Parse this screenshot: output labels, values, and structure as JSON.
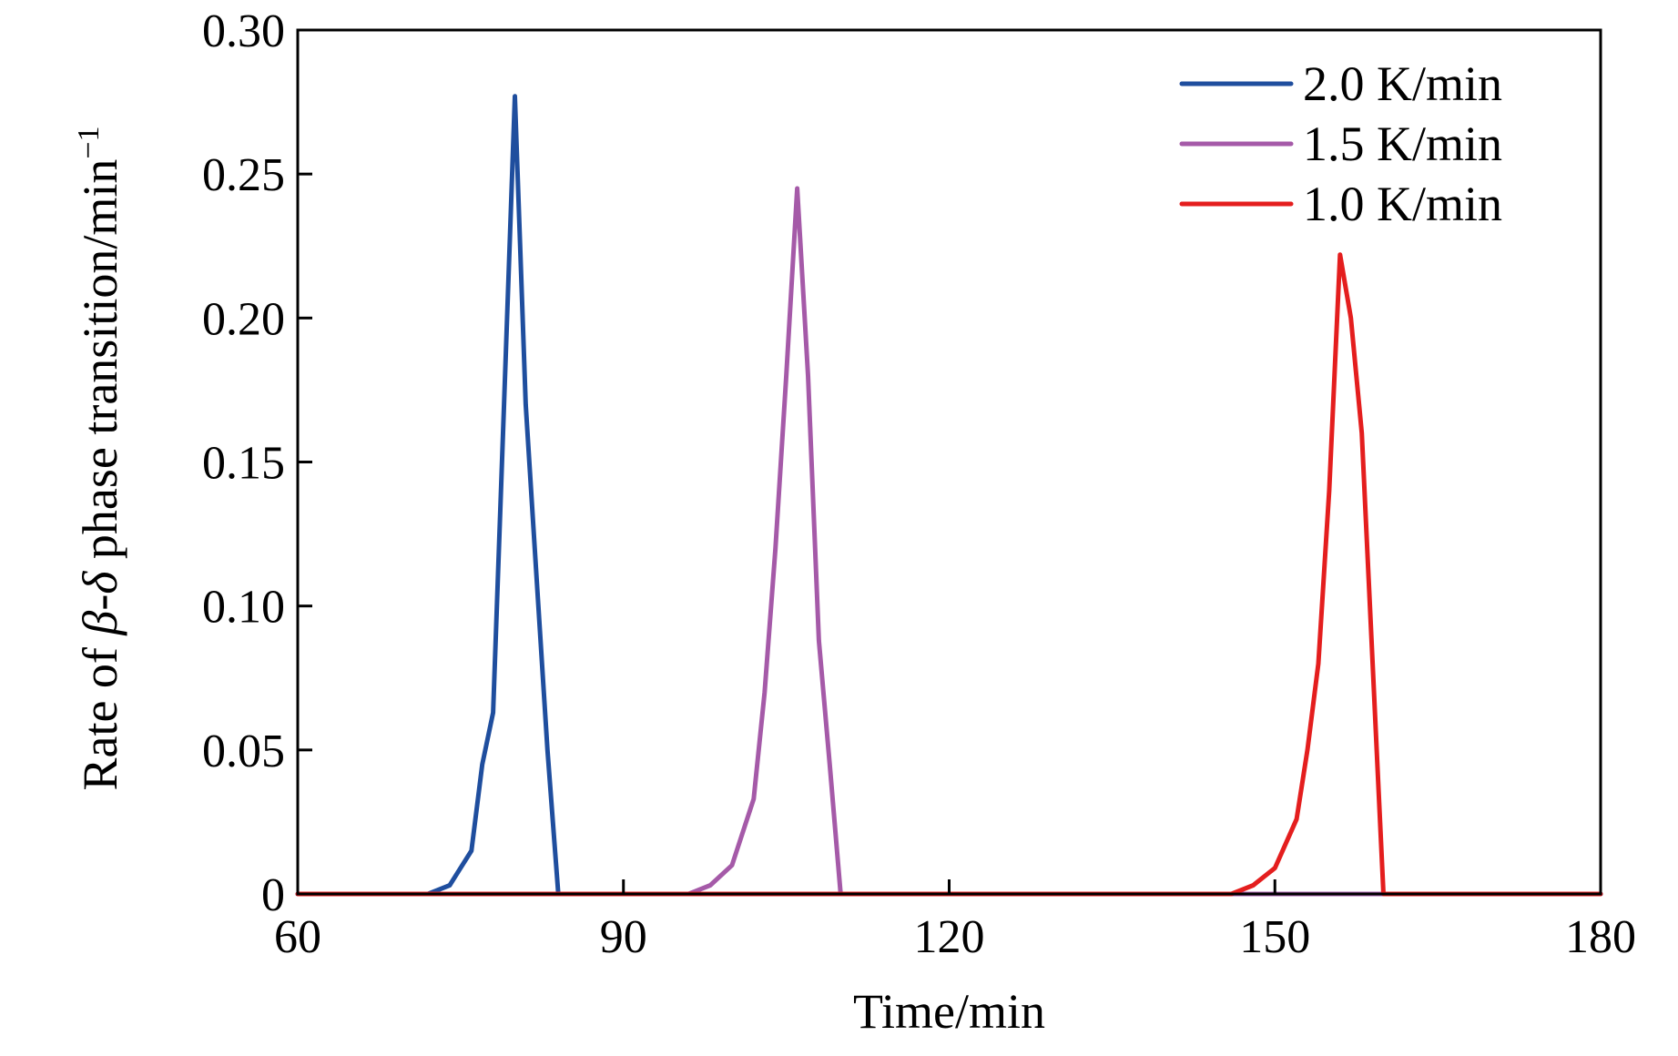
{
  "chart_data": {
    "type": "line",
    "title": "",
    "xlabel": "Time/min",
    "ylabel": {
      "prefix": "Rate of ",
      "beta": "β",
      "dash": "-",
      "delta": "δ",
      "middle": " phase transition/min",
      "superscript": "−1"
    },
    "xlim": [
      60,
      180
    ],
    "ylim": [
      0,
      0.3
    ],
    "x_ticks": [
      60,
      90,
      120,
      150,
      180
    ],
    "x_tick_labels": [
      "60",
      "90",
      "120",
      "150",
      "180"
    ],
    "y_ticks": [
      0,
      0.05,
      0.1,
      0.15,
      0.2,
      0.25,
      0.3
    ],
    "y_tick_labels": [
      "0",
      "0.05",
      "0.10",
      "0.15",
      "0.20",
      "0.25",
      "0.30"
    ],
    "grid": false,
    "legend_position": "top-right",
    "series": [
      {
        "name": "2.0 K/min",
        "color": "#1f4e9e",
        "x": [
          60,
          72,
          74,
          76,
          77,
          78,
          79,
          80,
          81,
          82,
          83,
          84,
          180
        ],
        "y": [
          0,
          0,
          0.003,
          0.015,
          0.045,
          0.063,
          0.17,
          0.277,
          0.17,
          0.11,
          0.05,
          0,
          0
        ]
      },
      {
        "name": "1.5 K/min",
        "color": "#a55aa8",
        "x": [
          60,
          96,
          98,
          100,
          102,
          103,
          104,
          105,
          106,
          107,
          108,
          109,
          110,
          180
        ],
        "y": [
          0,
          0,
          0.003,
          0.01,
          0.033,
          0.07,
          0.12,
          0.18,
          0.245,
          0.18,
          0.088,
          0.045,
          0,
          0
        ]
      },
      {
        "name": "1.0 K/min",
        "color": "#e41e1e",
        "x": [
          60,
          146,
          148,
          150,
          152,
          153,
          154,
          155,
          156,
          157,
          158,
          159,
          160,
          180
        ],
        "y": [
          0,
          0,
          0.003,
          0.009,
          0.026,
          0.05,
          0.08,
          0.14,
          0.222,
          0.2,
          0.16,
          0.08,
          0,
          0
        ]
      }
    ]
  }
}
